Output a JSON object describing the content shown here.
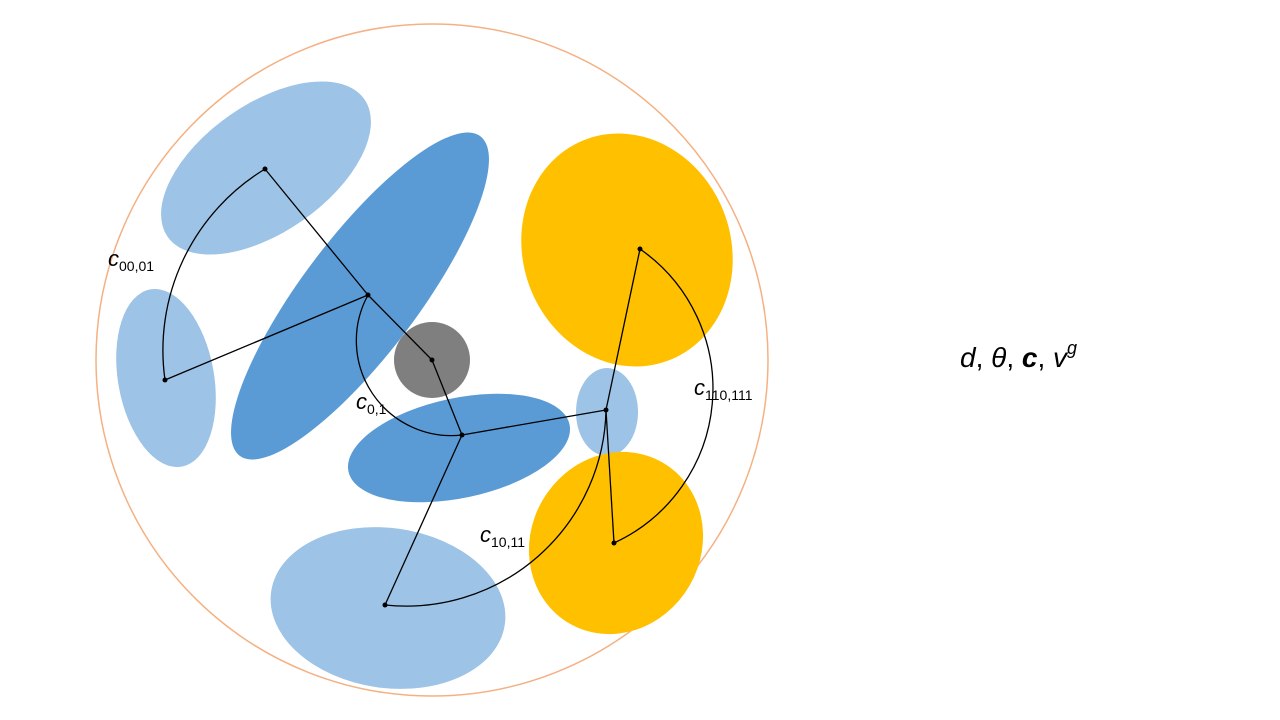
{
  "colors": {
    "boundary": "#F4B183",
    "light_blue": "#9DC3E6",
    "mid_blue": "#5B9BD5",
    "gold": "#FFC000",
    "gray": "#7F7F7F",
    "line": "#000000"
  },
  "labels": {
    "c00_01": {
      "base": "c",
      "sub": "00,01"
    },
    "c0_1": {
      "base": "c",
      "sub": "0,1"
    },
    "c10_11": {
      "base": "c",
      "sub": "10,11"
    },
    "c110_111": {
      "base": "c",
      "sub": "110,111"
    }
  },
  "formula": {
    "d": "d",
    "sep1": ", ",
    "theta": "θ",
    "sep2": ", ",
    "c": "c",
    "sep3": ", ",
    "v": "v",
    "v_sup": "g"
  }
}
